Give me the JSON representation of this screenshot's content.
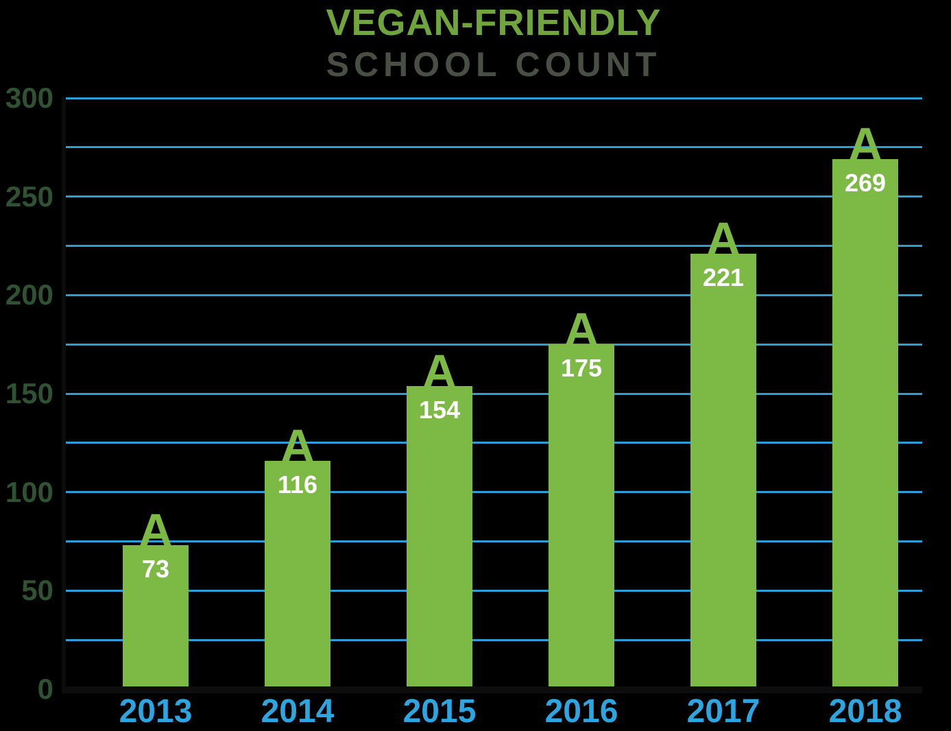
{
  "colors": {
    "background": "#000000",
    "bar_green": "#7CBA45",
    "title_green": "#6FA53C",
    "subtitle_gray": "#4A4F46",
    "grid_blue": "#2B9FD9",
    "year_blue": "#2CA6E0",
    "value_white": "#FFFFFF",
    "ytick_dark": "#2F5233",
    "axis_black": "#0D0D0D"
  },
  "title": {
    "line1": "VEGAN-FRIENDLY",
    "line2": "SCHOOL COUNT"
  },
  "chart_data": {
    "type": "bar",
    "title": "VEGAN-FRIENDLY SCHOOL COUNT",
    "categories": [
      "2013",
      "2014",
      "2015",
      "2016",
      "2017",
      "2018"
    ],
    "values": [
      73,
      116,
      154,
      175,
      221,
      269
    ],
    "bar_cap_letter": "A",
    "xlabel": "",
    "ylabel": "",
    "ylim": [
      0,
      300
    ],
    "yticks": [
      0,
      50,
      100,
      150,
      200,
      250,
      300
    ],
    "gridline_interval": 25,
    "grid": true,
    "legend": false
  }
}
